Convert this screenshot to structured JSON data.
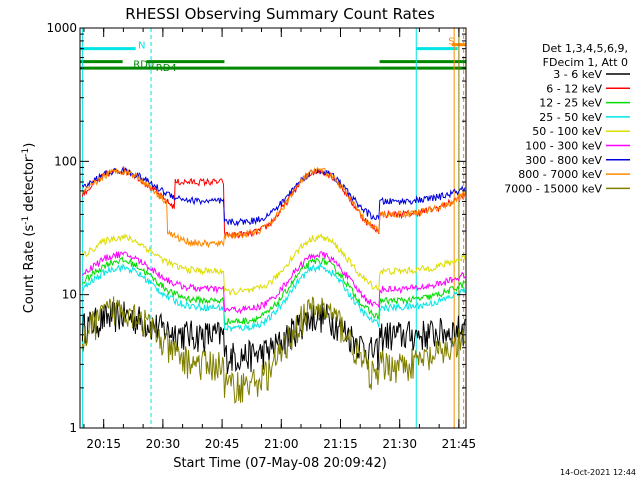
{
  "chart_data": {
    "type": "line",
    "title": "RHESSI Observing Summary Count Rates",
    "xlabel": "Start Time (07-May-08 20:09:42)",
    "ylabel_main": "Count Rate (s",
    "ylabel_sup1": "-1",
    "ylabel_mid": " detector",
    "ylabel_sup2": "-1",
    "ylabel_end": ")",
    "yscale": "log",
    "ylim": [
      1,
      1000
    ],
    "xlim_minutes": [
      20.15,
      21.78
    ],
    "yticks": [
      {
        "value": 1,
        "label": "1"
      },
      {
        "value": 10,
        "label": "10"
      },
      {
        "value": 100,
        "label": "100"
      },
      {
        "value": 1000,
        "label": "1000"
      }
    ],
    "xticks": [
      {
        "value": 20.25,
        "label": "20:15"
      },
      {
        "value": 20.5,
        "label": "20:30"
      },
      {
        "value": 20.75,
        "label": "20:45"
      },
      {
        "value": 21.0,
        "label": "21:00"
      },
      {
        "value": 21.25,
        "label": "21:15"
      },
      {
        "value": 21.5,
        "label": "21:30"
      },
      {
        "value": 21.75,
        "label": "21:45"
      }
    ],
    "legend": {
      "header": [
        "Det 1,3,4,5,6,9,",
        "FDecim 1, Att 0"
      ],
      "placement": "right"
    },
    "series": [
      {
        "name": "3 - 6 keV",
        "color": "#000000",
        "peak": 7,
        "base": 5
      },
      {
        "name": "6 - 12 keV",
        "color": "#ff0000",
        "peak": 85,
        "base": 40
      },
      {
        "name": "12 - 25 keV",
        "color": "#00dd00",
        "peak": 18,
        "base": 9
      },
      {
        "name": "25 - 50 keV",
        "color": "#00e5e5",
        "peak": 16,
        "base": 8
      },
      {
        "name": "50 - 100 keV",
        "color": "#dddd00",
        "peak": 27,
        "base": 15
      },
      {
        "name": "100 - 300 keV",
        "color": "#ff00ff",
        "peak": 20,
        "base": 11
      },
      {
        "name": "300 - 800 keV",
        "color": "#0000dd",
        "peak": 85,
        "base": 50
      },
      {
        "name": "800 - 7000 keV",
        "color": "#ff8800",
        "peak": 85,
        "base": 40
      },
      {
        "name": "7000 - 15000 keV",
        "color": "#808000",
        "peak": 8,
        "base": 3
      }
    ],
    "flags": [
      {
        "name": "N",
        "color": "#00e5e5",
        "value": 700
      },
      {
        "name": "RD0",
        "color": "#008800",
        "value": 560
      },
      {
        "name": "RD4",
        "color": "#008800",
        "value": 500
      },
      {
        "name": "S",
        "color": "#ff8800",
        "value": 750
      }
    ],
    "footer_date": "14-Oct-2021 12:44"
  }
}
